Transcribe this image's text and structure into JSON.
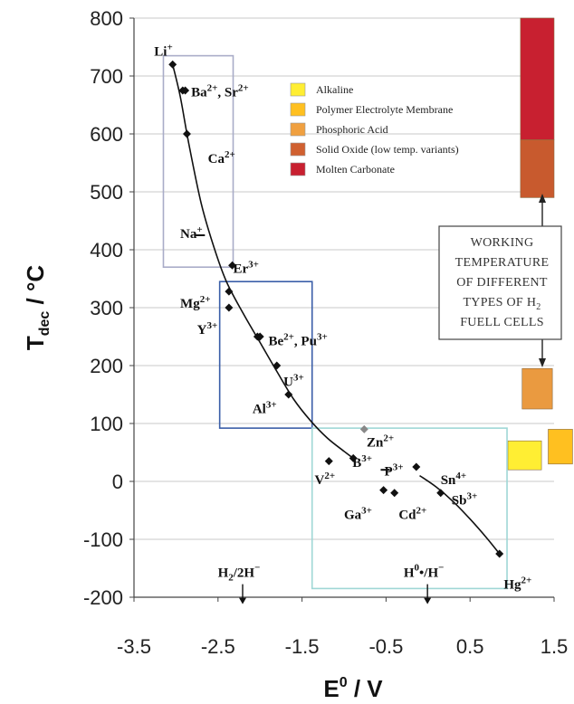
{
  "chart_data": {
    "type": "scatter",
    "xlabel": "E",
    "xlabel_sup": "0",
    "xlabel_unit": " / V",
    "ylabel": "T",
    "ylabel_sub": "dec",
    "ylabel_unit": " / °C",
    "xlim": [
      -3.5,
      1.5
    ],
    "ylim": [
      -200,
      800
    ],
    "xticks": [
      "-3.5",
      "-2.5",
      "-1.5",
      "-0.5",
      "0.5",
      "1.5"
    ],
    "yticks": [
      "800",
      "700",
      "600",
      "500",
      "400",
      "300",
      "200",
      "100",
      "0",
      "-100",
      "-200"
    ],
    "grid": "horizontal",
    "points": [
      {
        "x": -3.04,
        "y": 720,
        "shape": "diamond"
      },
      {
        "x": -2.92,
        "y": 675,
        "shape": "diamond"
      },
      {
        "x": -2.89,
        "y": 675,
        "shape": "diamond"
      },
      {
        "x": -2.87,
        "y": 600,
        "shape": "diamond"
      },
      {
        "x": -2.71,
        "y": 425,
        "shape": "dash"
      },
      {
        "x": -2.37,
        "y": 328,
        "shape": "diamond"
      },
      {
        "x": -2.37,
        "y": 300,
        "shape": "diamond"
      },
      {
        "x": -2.33,
        "y": 373,
        "shape": "diamond"
      },
      {
        "x": -2.03,
        "y": 250,
        "shape": "diamond"
      },
      {
        "x": -2.0,
        "y": 250,
        "shape": "diamond"
      },
      {
        "x": -1.8,
        "y": 200,
        "shape": "diamond"
      },
      {
        "x": -1.66,
        "y": 150,
        "shape": "diamond"
      },
      {
        "x": -1.18,
        "y": 35,
        "shape": "diamond"
      },
      {
        "x": -0.89,
        "y": 40,
        "shape": "diamond"
      },
      {
        "x": -0.76,
        "y": 90,
        "shape": "diamond-light"
      },
      {
        "x": -0.53,
        "y": -15,
        "shape": "diamond"
      },
      {
        "x": -0.4,
        "y": -20,
        "shape": "diamond"
      },
      {
        "x": -0.51,
        "y": 20,
        "shape": "dash"
      },
      {
        "x": -0.14,
        "y": 25,
        "shape": "diamond"
      },
      {
        "x": 0.15,
        "y": -20,
        "shape": "diamond"
      },
      {
        "x": 0.85,
        "y": -125,
        "shape": "diamond"
      }
    ],
    "curve": [
      [
        -3.04,
        720
      ],
      [
        -2.95,
        665
      ],
      [
        -2.85,
        585
      ],
      [
        -2.7,
        480
      ],
      [
        -2.55,
        405
      ],
      [
        -2.4,
        345
      ],
      [
        -2.2,
        290
      ],
      [
        -2.0,
        240
      ],
      [
        -1.8,
        190
      ],
      [
        -1.6,
        142
      ],
      [
        -1.4,
        105
      ],
      [
        -1.2,
        75
      ],
      [
        -1.0,
        52
      ],
      [
        -0.89,
        40
      ]
    ],
    "curve2": [
      [
        -0.1,
        10
      ],
      [
        0.1,
        -10
      ],
      [
        0.3,
        -35
      ],
      [
        0.5,
        -65
      ],
      [
        0.7,
        -98
      ],
      [
        0.85,
        -125
      ]
    ],
    "ion_labels": [
      {
        "base": "Li",
        "charge": "+",
        "x": -3.26,
        "y": 735
      },
      {
        "base": "Ba",
        "charge": "2+",
        "joiner": ", ",
        "base2": "Sr",
        "charge2": "2+",
        "x": -2.82,
        "y": 665
      },
      {
        "base": "Ca",
        "charge": "2+",
        "x": -2.62,
        "y": 550
      },
      {
        "base": "Na",
        "charge": "+",
        "x": -2.95,
        "y": 420
      },
      {
        "base": "Er",
        "charge": "3+",
        "x": -2.32,
        "y": 360
      },
      {
        "base": "Mg",
        "charge": "2+",
        "x": -2.95,
        "y": 300
      },
      {
        "base": "Y",
        "charge": "3+",
        "x": -2.75,
        "y": 255
      },
      {
        "base": "Be",
        "charge": "2+",
        "joiner": ", ",
        "base2": "Pu",
        "charge2": "3+",
        "x": -1.9,
        "y": 235
      },
      {
        "base": "U",
        "charge": "3+",
        "x": -1.72,
        "y": 165
      },
      {
        "base": "Al",
        "charge": "3+",
        "x": -2.09,
        "y": 118
      },
      {
        "base": "Zn",
        "charge": "2+",
        "x": -0.73,
        "y": 60
      },
      {
        "base": "B",
        "charge": "3+",
        "x": -0.9,
        "y": 25
      },
      {
        "base": "V",
        "charge": "2+",
        "x": -1.35,
        "y": -5
      },
      {
        "base": "P",
        "charge": "3+",
        "x": -0.52,
        "y": 10
      },
      {
        "base": "Sn",
        "charge": "4+",
        "x": 0.15,
        "y": -5
      },
      {
        "base": "Sb",
        "charge": "3+",
        "x": 0.28,
        "y": -40
      },
      {
        "base": "Ga",
        "charge": "3+",
        "x": -1.0,
        "y": -65
      },
      {
        "base": "Cd",
        "charge": "2+",
        "x": -0.35,
        "y": -65
      },
      {
        "base": "Hg",
        "charge": "2+",
        "x": 0.9,
        "y": -185
      }
    ],
    "boxes": [
      {
        "x1": -3.15,
        "x2": -2.32,
        "y1": 370,
        "y2": 735,
        "color": "#a9acc8"
      },
      {
        "x1": -2.48,
        "x2": -1.38,
        "y1": 92,
        "y2": 345,
        "color": "#3a5ea8"
      },
      {
        "x1": -1.38,
        "x2": 0.94,
        "y1": -185,
        "y2": 92,
        "color": "#9fd7d6"
      }
    ],
    "annotations": [
      {
        "text_main": "H",
        "text_sub": "2",
        "text_rest": "/2H",
        "text_sup": "−",
        "x": -2.25,
        "y": -165,
        "arrow_to": -212
      },
      {
        "text_main": "H",
        "text_sup": "0",
        "text_rest": "•/H",
        "text_sup2": "−",
        "x": -0.05,
        "y": -165,
        "arrow_to": -212
      }
    ],
    "legend": {
      "placement": "top-right",
      "items": [
        {
          "label": "Alkaline",
          "color": "#ffee33"
        },
        {
          "label": "Polymer Electrolyte Membrane",
          "color": "#ffc020"
        },
        {
          "label": "Phosphoric Acid",
          "color": "#f0a040"
        },
        {
          "label": "Solid Oxide (low temp. variants)",
          "color": "#d06030"
        },
        {
          "label": "Molten Carbonate",
          "color": "#c82030"
        }
      ]
    },
    "fuel_cell_bars": [
      {
        "type": "Molten Carbonate",
        "x1": 1.1,
        "x2": 1.5,
        "y1": 590,
        "y2": 800,
        "color": "#c82030"
      },
      {
        "type": "Solid Oxide (low temp. variants)",
        "x1": 1.1,
        "x2": 1.5,
        "y1": 490,
        "y2": 590,
        "color": "#c85a2e"
      },
      {
        "type": "Phosphoric Acid",
        "x1": 1.12,
        "x2": 1.48,
        "y1": 125,
        "y2": 195,
        "color": "#ea9a40"
      },
      {
        "type": "Alkaline",
        "x1": 0.95,
        "x2": 1.35,
        "y1": 20,
        "y2": 70,
        "color": "#ffee33"
      },
      {
        "type": "Polymer Electrolyte Membrane",
        "x1": 1.43,
        "x2": 1.72,
        "y1": 30,
        "y2": 90,
        "color": "#ffc020"
      }
    ],
    "info_box": {
      "lines": [
        "WORKING",
        "TEMPERATURE",
        "OF DIFFERENT",
        "TYPES OF H",
        "FUELL CELLS"
      ],
      "sub_on_line4": "2"
    }
  }
}
